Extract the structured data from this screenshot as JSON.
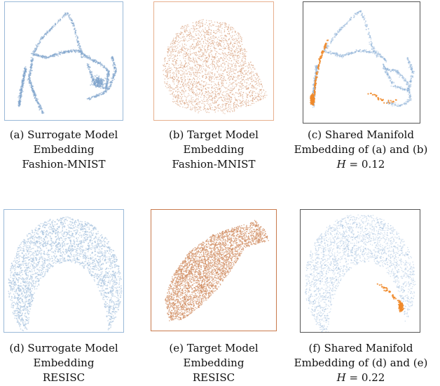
{
  "figure": {
    "panels": [
      {
        "id": "a",
        "frame_color": "#9ab9d8",
        "point_color": "#7fa4cc",
        "caption": [
          "(a) Surrogate Model",
          "Embedding",
          "Fashion-MNIST"
        ]
      },
      {
        "id": "b",
        "frame_color": "#e7b08e",
        "point_color": "#d4956c",
        "caption": [
          "(b) Target Model",
          "Embedding",
          "Fashion-MNIST"
        ]
      },
      {
        "id": "c",
        "frame_color": "#555555",
        "point_color": "#8fb2d6",
        "highlight_color": "#f08a2a",
        "caption": [
          "(c) Shared Manifold",
          "Embedding of (a) and (b)"
        ],
        "metric": {
          "symbol": "H",
          "equals": "=",
          "value": "0.12"
        }
      },
      {
        "id": "d",
        "frame_color": "#9ab9d8",
        "point_color": "#9dbbdb",
        "caption": [
          "(d) Surrogate Model",
          "Embedding",
          "RESISC"
        ]
      },
      {
        "id": "e",
        "frame_color": "#c97a4d",
        "point_color": "#d28f64",
        "caption": [
          "(e) Target Model",
          "Embedding",
          "RESISC"
        ]
      },
      {
        "id": "f",
        "frame_color": "#555555",
        "point_color": "#8fb2d6",
        "highlight_color": "#f08a2a",
        "caption": [
          "(f) Shared Manifold",
          "Embedding of (d) and (e)"
        ],
        "metric": {
          "symbol": "H",
          "equals": "=",
          "value": "0.22"
        }
      }
    ]
  }
}
